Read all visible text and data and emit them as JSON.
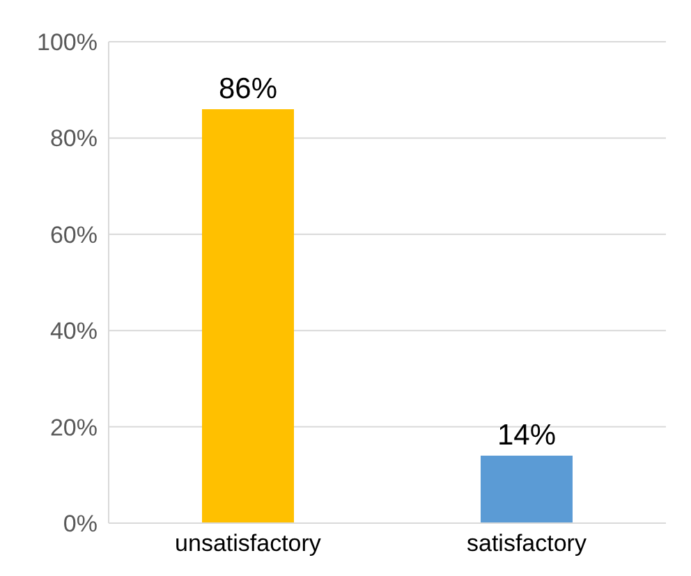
{
  "chart_data": {
    "type": "bar",
    "categories": [
      "unsatisfactory",
      "satisfactory"
    ],
    "values": [
      86,
      14
    ],
    "colors": [
      "#ffc000",
      "#5b9bd5"
    ],
    "value_labels": [
      "86%",
      "14%"
    ],
    "ylim": [
      0,
      100
    ],
    "yticks": [
      {
        "value": 0,
        "label": "0%"
      },
      {
        "value": 20,
        "label": "20%"
      },
      {
        "value": 40,
        "label": "40%"
      },
      {
        "value": 60,
        "label": "60%"
      },
      {
        "value": 80,
        "label": "80%"
      },
      {
        "value": 100,
        "label": "100%"
      }
    ],
    "grid": "y"
  }
}
